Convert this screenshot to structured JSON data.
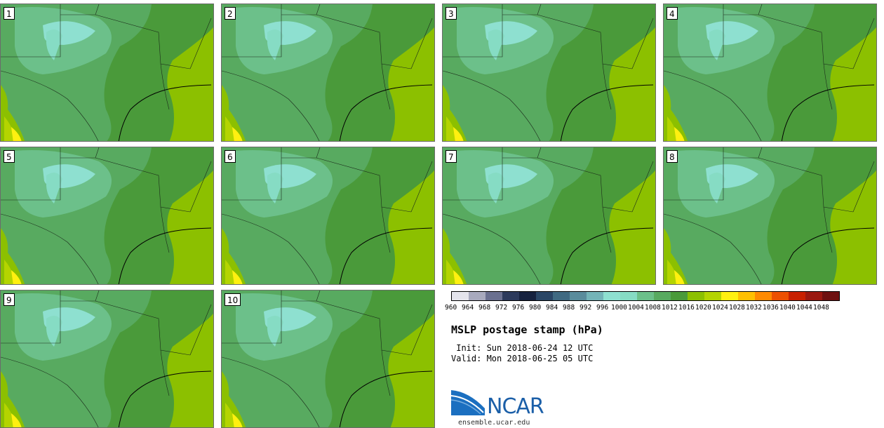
{
  "panels": [
    {
      "label": "1"
    },
    {
      "label": "2"
    },
    {
      "label": "3"
    },
    {
      "label": "4"
    },
    {
      "label": "5"
    },
    {
      "label": "6"
    },
    {
      "label": "7"
    },
    {
      "label": "8"
    },
    {
      "label": "9"
    },
    {
      "label": "10"
    }
  ],
  "colorbar": {
    "colors": [
      "#e4e4ec",
      "#a8aabe",
      "#6a7090",
      "#2c3a5c",
      "#16223f",
      "#2a4666",
      "#406a82",
      "#5a8c9c",
      "#74b4b8",
      "#8ee0d0",
      "#86dcc4",
      "#6cc08a",
      "#58aa60",
      "#4a9a3a",
      "#8cc000",
      "#b4d400",
      "#fff010",
      "#ffc000",
      "#ff8a00",
      "#ec5000",
      "#c82000",
      "#9a1810",
      "#6e1010"
    ],
    "ticks": [
      "960",
      "964",
      "968",
      "972",
      "976",
      "980",
      "984",
      "988",
      "992",
      "996",
      "1000",
      "1004",
      "1008",
      "1012",
      "1016",
      "1020",
      "1024",
      "1028",
      "1032",
      "1036",
      "1040",
      "1044",
      "1048"
    ]
  },
  "title": "MSLP postage stamp (hPa)",
  "init_line": " Init: Sun 2018-06-24 12 UTC",
  "valid_line": "Valid: Mon 2018-06-25 05 UTC",
  "logo": {
    "text": "NCAR",
    "url": "ensemble.ucar.edu"
  }
}
